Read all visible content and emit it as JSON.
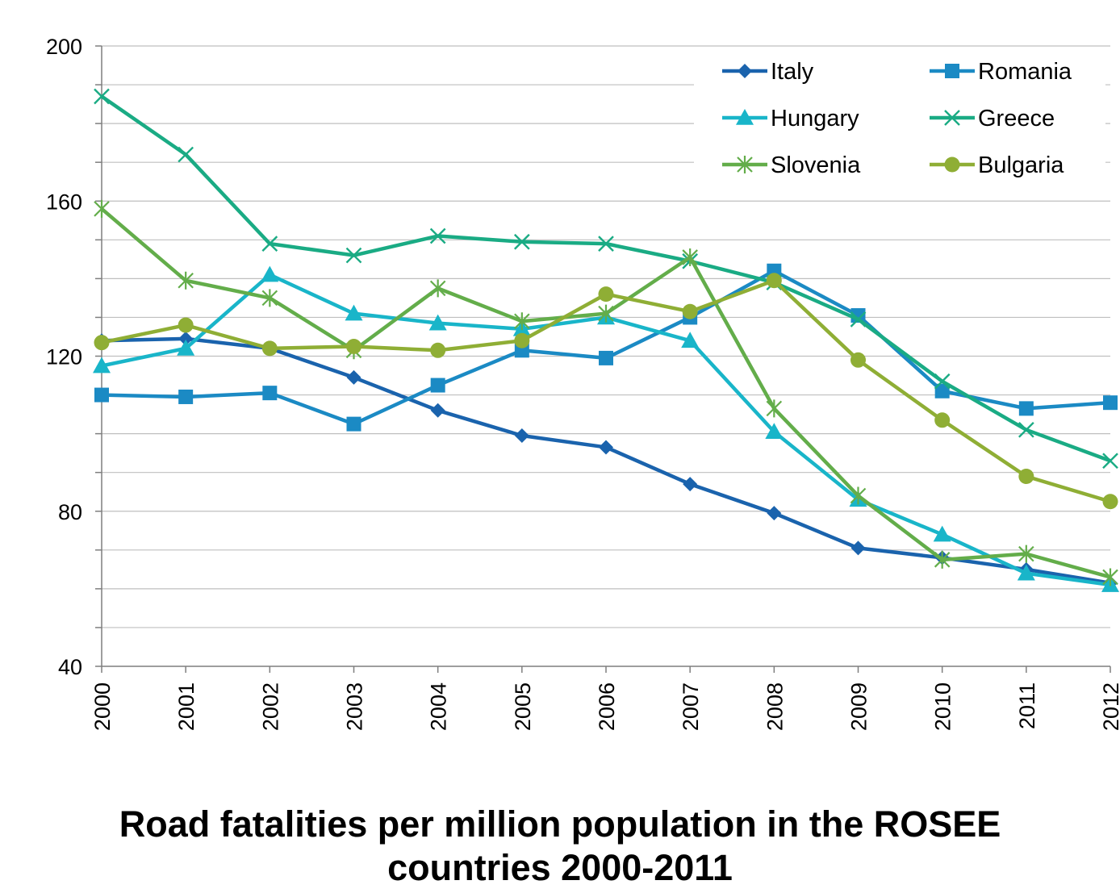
{
  "chart_data": {
    "type": "line",
    "title": [
      "Road fatalities per million population in the ROSEE",
      "countries 2000-2011"
    ],
    "xlabel": "",
    "ylabel": "",
    "x": [
      "2000",
      "2001",
      "2002",
      "2003",
      "2004",
      "2005",
      "2006",
      "2007",
      "2008",
      "2009",
      "2010",
      "2011",
      "2012"
    ],
    "ylim": [
      40,
      200
    ],
    "yticks": [
      40,
      80,
      120,
      160,
      200
    ],
    "grid": true,
    "legend": "top-right",
    "series": [
      {
        "name": "Italy",
        "color": "#1a63ad",
        "marker": "diamond",
        "values": [
          124,
          124.5,
          122,
          114.5,
          106,
          99.5,
          96.5,
          87,
          79.5,
          70.5,
          68,
          65,
          61.5
        ]
      },
      {
        "name": "Romania",
        "color": "#1b8ac4",
        "marker": "square",
        "values": [
          110,
          109.5,
          110.5,
          102.5,
          112.5,
          121.5,
          119.5,
          130,
          142,
          130.5,
          111,
          106.5,
          108
        ]
      },
      {
        "name": "Hungary",
        "color": "#19b5c9",
        "marker": "triangle",
        "values": [
          117.5,
          122,
          141,
          131,
          128.5,
          127,
          130,
          124,
          100.5,
          83,
          74,
          64,
          61
        ]
      },
      {
        "name": "Greece",
        "color": "#1aab84",
        "marker": "x",
        "values": [
          187,
          172,
          149,
          146,
          151,
          149.5,
          149,
          144.5,
          139,
          129.5,
          113.5,
          101,
          93
        ]
      },
      {
        "name": "Slovenia",
        "color": "#63ad4a",
        "marker": "star",
        "values": [
          158,
          139.5,
          135,
          121.5,
          137.5,
          129,
          131,
          145.5,
          106.5,
          84,
          67.5,
          69,
          63
        ]
      },
      {
        "name": "Bulgaria",
        "color": "#8fae35",
        "marker": "circle",
        "values": [
          123.5,
          128,
          122,
          122.5,
          121.5,
          124,
          136,
          131.5,
          139.5,
          119,
          103.5,
          89,
          82.5
        ]
      }
    ]
  }
}
